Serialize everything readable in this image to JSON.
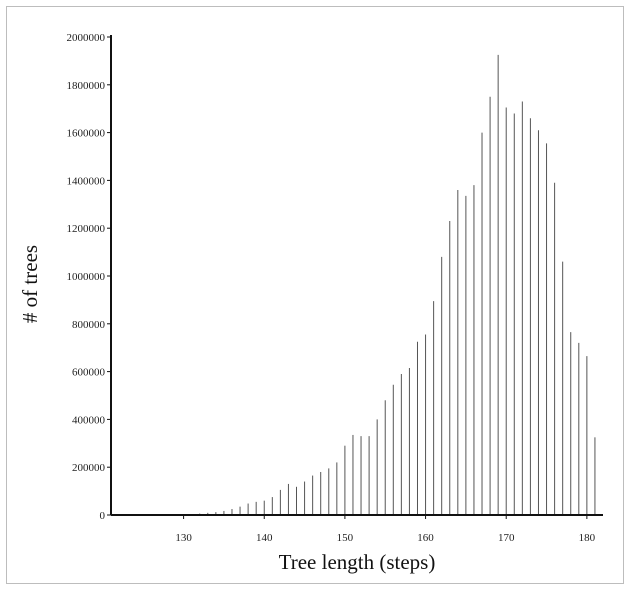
{
  "chart_data": {
    "type": "bar",
    "xlabel": "Tree length (steps)",
    "ylabel": "# of trees",
    "xlim": [
      121,
      182
    ],
    "ylim": [
      0,
      2000000
    ],
    "xticks": [
      130,
      140,
      150,
      160,
      170,
      180
    ],
    "yticks": [
      0,
      200000,
      400000,
      600000,
      800000,
      1000000,
      1200000,
      1400000,
      1600000,
      1800000,
      2000000
    ],
    "grid": false,
    "x": [
      130,
      131,
      132,
      133,
      134,
      135,
      136,
      137,
      138,
      139,
      140,
      141,
      142,
      143,
      144,
      145,
      146,
      147,
      148,
      149,
      150,
      151,
      152,
      153,
      154,
      155,
      156,
      157,
      158,
      159,
      160,
      161,
      162,
      163,
      164,
      165,
      166,
      167,
      168,
      169,
      170,
      171,
      172,
      173,
      174,
      175,
      176,
      177,
      178,
      179,
      180,
      181
    ],
    "values": [
      3000,
      4000,
      6000,
      9000,
      12000,
      17000,
      25000,
      35000,
      48000,
      55000,
      60000,
      75000,
      105000,
      130000,
      118000,
      140000,
      165000,
      180000,
      195000,
      220000,
      290000,
      335000,
      330000,
      330000,
      400000,
      480000,
      545000,
      590000,
      615000,
      725000,
      755000,
      895000,
      1080000,
      1230000,
      1360000,
      1335000,
      1380000,
      1600000,
      1750000,
      1925000,
      1705000,
      1680000,
      1730000,
      1660000,
      1610000,
      1555000,
      1390000,
      1060000,
      765000,
      720000,
      665000,
      325000
    ]
  }
}
